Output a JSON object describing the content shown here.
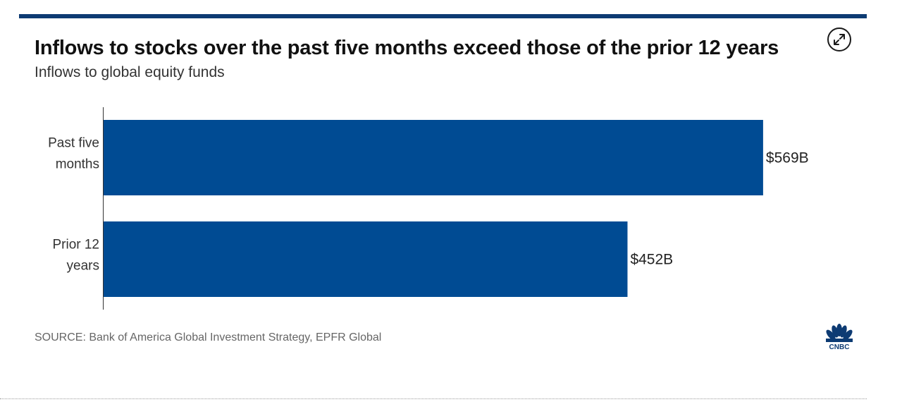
{
  "title": "Inflows to stocks over the past five months exceed those of the prior 12 years",
  "subtitle": "Inflows to global equity funds",
  "source": "SOURCE: Bank of America Global Investment Strategy, EPFR Global",
  "logo_text": "CNBC",
  "icons": {
    "expand": "expand-arrows-icon",
    "logo": "cnbc-peacock-logo"
  },
  "colors": {
    "bar": "#004b93",
    "top_rule": "#0d3b73"
  },
  "chart_data": {
    "type": "bar",
    "orientation": "horizontal",
    "title": "Inflows to stocks over the past five months exceed those of the prior 12 years",
    "subtitle": "Inflows to global equity funds",
    "categories": [
      [
        "Past five",
        "months"
      ],
      [
        "Prior 12",
        "years"
      ]
    ],
    "values": [
      569,
      452
    ],
    "value_labels": [
      "$569B",
      "$452B"
    ],
    "xlim": [
      0,
      580
    ],
    "grid": false,
    "legend": "none"
  }
}
